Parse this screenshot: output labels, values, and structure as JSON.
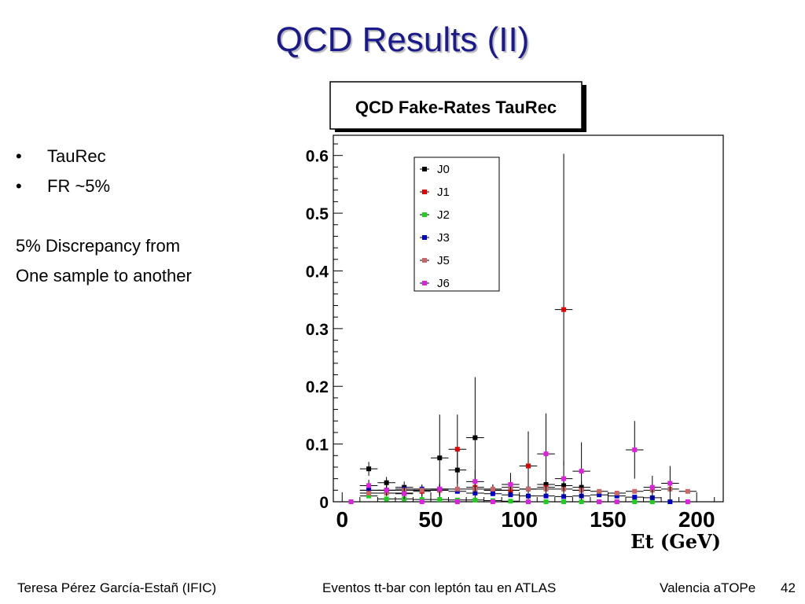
{
  "slide": {
    "title": "QCD Results (II)",
    "bullets": [
      "TauRec",
      "FR ~5%"
    ],
    "notes": [
      "5% Discrepancy from",
      "One sample to another"
    ],
    "footer": {
      "left": "Teresa Pérez García-Estañ (IFIC)",
      "center": "Eventos tt-bar con leptón tau en ATLAS",
      "right": "Valencia aTOPe",
      "page": "42"
    }
  },
  "chart_data": {
    "type": "scatter",
    "title": "QCD Fake-Rates TauRec",
    "xlabel": "Et (GeV)",
    "ylabel": "",
    "xlim": [
      -5,
      215
    ],
    "ylim": [
      0,
      0.635
    ],
    "xticks": [
      "0",
      "50",
      "100",
      "150",
      "200"
    ],
    "yticks": [
      "0",
      "0.1",
      "0.2",
      "0.3",
      "0.4",
      "0.5",
      "0.6"
    ],
    "legend_position": "top-left",
    "grid": false,
    "series": [
      {
        "name": "J0",
        "color": "#000000",
        "points": [
          {
            "x": 15,
            "y": 0.057,
            "err": 0.012
          },
          {
            "x": 25,
            "y": 0.033,
            "err": 0.01
          },
          {
            "x": 35,
            "y": 0.025,
            "err": 0.01
          },
          {
            "x": 45,
            "y": 0.02,
            "err": 0.01
          },
          {
            "x": 55,
            "y": 0.076,
            "err": 0.075
          },
          {
            "x": 65,
            "y": 0.055,
            "err": 0.04
          },
          {
            "x": 75,
            "y": 0.111,
            "err": 0.105
          },
          {
            "x": 85,
            "y": 0.02,
            "err": 0.01
          },
          {
            "x": 95,
            "y": 0.02,
            "err": 0.01
          },
          {
            "x": 105,
            "y": 0.022,
            "err": 0.01
          },
          {
            "x": 115,
            "y": 0.03,
            "err": 0.01
          },
          {
            "x": 125,
            "y": 0.028,
            "err": 0.01
          },
          {
            "x": 135,
            "y": 0.025,
            "err": 0.01
          }
        ]
      },
      {
        "name": "J1",
        "color": "#e60000",
        "points": [
          {
            "x": 15,
            "y": 0.02,
            "err": 0.01
          },
          {
            "x": 25,
            "y": 0.02,
            "err": 0.01
          },
          {
            "x": 35,
            "y": 0.015,
            "err": 0.01
          },
          {
            "x": 45,
            "y": 0.018,
            "err": 0.01
          },
          {
            "x": 55,
            "y": 0.02,
            "err": 0.01
          },
          {
            "x": 65,
            "y": 0.091,
            "err": 0.06
          },
          {
            "x": 75,
            "y": 0.025,
            "err": 0.01
          },
          {
            "x": 85,
            "y": 0.02,
            "err": 0.01
          },
          {
            "x": 95,
            "y": 0.02,
            "err": 0.01
          },
          {
            "x": 105,
            "y": 0.062,
            "err": 0.06
          },
          {
            "x": 115,
            "y": 0.025,
            "err": 0.01
          },
          {
            "x": 125,
            "y": 0.333,
            "err": 0.27
          },
          {
            "x": 135,
            "y": 0.02,
            "err": 0.01
          }
        ]
      },
      {
        "name": "J2",
        "color": "#1ed01e",
        "points": [
          {
            "x": 5,
            "y": 0.0
          },
          {
            "x": 15,
            "y": 0.01
          },
          {
            "x": 25,
            "y": 0.005
          },
          {
            "x": 35,
            "y": 0.005
          },
          {
            "x": 45,
            "y": 0.004
          },
          {
            "x": 55,
            "y": 0.004
          },
          {
            "x": 65,
            "y": 0.003
          },
          {
            "x": 75,
            "y": 0.003
          },
          {
            "x": 85,
            "y": 0.002
          },
          {
            "x": 95,
            "y": 0.001
          },
          {
            "x": 105,
            "y": 0.0
          },
          {
            "x": 115,
            "y": 0.0
          },
          {
            "x": 125,
            "y": 0.0
          },
          {
            "x": 135,
            "y": 0.0
          },
          {
            "x": 145,
            "y": 0.0
          },
          {
            "x": 155,
            "y": 0.0
          },
          {
            "x": 165,
            "y": 0.0
          },
          {
            "x": 175,
            "y": 0.0
          }
        ]
      },
      {
        "name": "J3",
        "color": "#0000cc",
        "points": [
          {
            "x": 15,
            "y": 0.02
          },
          {
            "x": 25,
            "y": 0.02
          },
          {
            "x": 35,
            "y": 0.022
          },
          {
            "x": 45,
            "y": 0.022
          },
          {
            "x": 55,
            "y": 0.022
          },
          {
            "x": 65,
            "y": 0.018
          },
          {
            "x": 75,
            "y": 0.015
          },
          {
            "x": 85,
            "y": 0.014
          },
          {
            "x": 95,
            "y": 0.012
          },
          {
            "x": 105,
            "y": 0.01
          },
          {
            "x": 115,
            "y": 0.01
          },
          {
            "x": 125,
            "y": 0.009
          },
          {
            "x": 135,
            "y": 0.01
          },
          {
            "x": 145,
            "y": 0.012
          },
          {
            "x": 155,
            "y": 0.01
          },
          {
            "x": 165,
            "y": 0.008
          },
          {
            "x": 175,
            "y": 0.007
          },
          {
            "x": 185,
            "y": 0.0
          }
        ]
      },
      {
        "name": "J5",
        "color": "#cc6666",
        "points": [
          {
            "x": 15,
            "y": 0.015
          },
          {
            "x": 25,
            "y": 0.015
          },
          {
            "x": 35,
            "y": 0.02
          },
          {
            "x": 45,
            "y": 0.02
          },
          {
            "x": 55,
            "y": 0.02
          },
          {
            "x": 65,
            "y": 0.022
          },
          {
            "x": 75,
            "y": 0.022
          },
          {
            "x": 85,
            "y": 0.022
          },
          {
            "x": 95,
            "y": 0.025
          },
          {
            "x": 105,
            "y": 0.022
          },
          {
            "x": 115,
            "y": 0.022
          },
          {
            "x": 125,
            "y": 0.022
          },
          {
            "x": 135,
            "y": 0.02
          },
          {
            "x": 145,
            "y": 0.018
          },
          {
            "x": 155,
            "y": 0.015
          },
          {
            "x": 165,
            "y": 0.018
          },
          {
            "x": 175,
            "y": 0.02
          },
          {
            "x": 185,
            "y": 0.022
          },
          {
            "x": 195,
            "y": 0.018
          }
        ]
      },
      {
        "name": "J6",
        "color": "#e020e0",
        "points": [
          {
            "x": 5,
            "y": 0.0
          },
          {
            "x": 15,
            "y": 0.028,
            "err": 0.01
          },
          {
            "x": 25,
            "y": 0.02,
            "err": 0.01
          },
          {
            "x": 35,
            "y": 0.014,
            "err": 0.01
          },
          {
            "x": 45,
            "y": 0.0
          },
          {
            "x": 55,
            "y": 0.022,
            "err": 0.01
          },
          {
            "x": 65,
            "y": 0.0
          },
          {
            "x": 75,
            "y": 0.035,
            "err": 0.02
          },
          {
            "x": 85,
            "y": 0.0
          },
          {
            "x": 95,
            "y": 0.03,
            "err": 0.02
          },
          {
            "x": 105,
            "y": 0.0
          },
          {
            "x": 115,
            "y": 0.083,
            "err": 0.07
          },
          {
            "x": 125,
            "y": 0.04,
            "err": 0.03
          },
          {
            "x": 135,
            "y": 0.053,
            "err": 0.05
          },
          {
            "x": 145,
            "y": 0.0
          },
          {
            "x": 155,
            "y": 0.0
          },
          {
            "x": 165,
            "y": 0.09,
            "err": 0.05
          },
          {
            "x": 175,
            "y": 0.025,
            "err": 0.02
          },
          {
            "x": 185,
            "y": 0.032,
            "err": 0.03
          },
          {
            "x": 195,
            "y": 0.0
          }
        ]
      }
    ]
  }
}
